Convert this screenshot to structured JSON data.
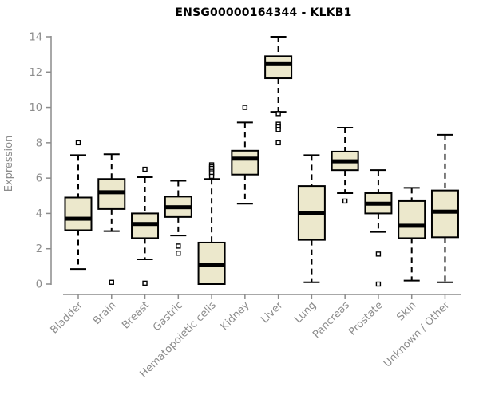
{
  "colors": {
    "background": "#ffffff",
    "box_fill": "#ece8cc",
    "box_stroke": "#000000",
    "median": "#000000",
    "whisker": "#000000",
    "outlier_stroke": "#000000",
    "axis": "#8c8c8c",
    "tick_label": "#8c8c8c",
    "category_label": "#8c8c8c",
    "title": "#000000"
  },
  "chart_data": {
    "type": "boxplot",
    "title": "ENSG00000164344 - KLKB1",
    "ylabel": "Expression",
    "xlabel": "",
    "ylim": [
      0,
      14
    ],
    "yticks": [
      0,
      2,
      4,
      6,
      8,
      10,
      12,
      14
    ],
    "grid": false,
    "legend": false,
    "categories": [
      "Bladder",
      "Brain",
      "Breast",
      "Gastric",
      "Hematopoietic cells",
      "Kidney",
      "Liver",
      "Lung",
      "Pancreas",
      "Prostate",
      "Skin",
      "Unknown / Other"
    ],
    "series": [
      {
        "name": "Bladder",
        "whisker_low": 0.85,
        "q1": 3.05,
        "median": 3.7,
        "q3": 4.9,
        "whisker_high": 7.3,
        "outliers": [
          8.0
        ]
      },
      {
        "name": "Brain",
        "whisker_low": 3.0,
        "q1": 4.25,
        "median": 5.2,
        "q3": 5.95,
        "whisker_high": 7.35,
        "outliers": [
          0.1
        ]
      },
      {
        "name": "Breast",
        "whisker_low": 1.4,
        "q1": 2.6,
        "median": 3.4,
        "q3": 4.0,
        "whisker_high": 6.05,
        "outliers": [
          6.5,
          0.05
        ]
      },
      {
        "name": "Gastric",
        "whisker_low": 2.75,
        "q1": 3.8,
        "median": 4.35,
        "q3": 4.95,
        "whisker_high": 5.85,
        "outliers": [
          2.15,
          1.75
        ]
      },
      {
        "name": "Hematopoietic cells",
        "whisker_low": 0.0,
        "q1": 0.0,
        "median": 1.1,
        "q3": 2.35,
        "whisker_high": 5.95,
        "outliers": [
          6.75,
          6.65,
          6.55,
          6.45,
          6.35,
          6.25,
          6.1
        ]
      },
      {
        "name": "Kidney",
        "whisker_low": 4.55,
        "q1": 6.2,
        "median": 7.1,
        "q3": 7.55,
        "whisker_high": 9.15,
        "outliers": [
          10.0
        ]
      },
      {
        "name": "Liver",
        "whisker_low": 9.75,
        "q1": 11.65,
        "median": 12.45,
        "q3": 12.9,
        "whisker_high": 14.0,
        "outliers": [
          9.65,
          9.05,
          8.9,
          8.75,
          8.0
        ]
      },
      {
        "name": "Lung",
        "whisker_low": 0.1,
        "q1": 2.5,
        "median": 4.0,
        "q3": 5.55,
        "whisker_high": 7.3,
        "outliers": []
      },
      {
        "name": "Pancreas",
        "whisker_low": 5.15,
        "q1": 6.45,
        "median": 6.95,
        "q3": 7.5,
        "whisker_high": 8.85,
        "outliers": [
          4.7
        ]
      },
      {
        "name": "Prostate",
        "whisker_low": 2.95,
        "q1": 4.0,
        "median": 4.55,
        "q3": 5.15,
        "whisker_high": 6.45,
        "outliers": [
          1.7,
          0.0
        ]
      },
      {
        "name": "Skin",
        "whisker_low": 0.2,
        "q1": 2.6,
        "median": 3.3,
        "q3": 4.7,
        "whisker_high": 5.45,
        "outliers": []
      },
      {
        "name": "Unknown / Other",
        "whisker_low": 0.1,
        "q1": 2.65,
        "median": 4.1,
        "q3": 5.3,
        "whisker_high": 8.45,
        "outliers": []
      }
    ]
  }
}
